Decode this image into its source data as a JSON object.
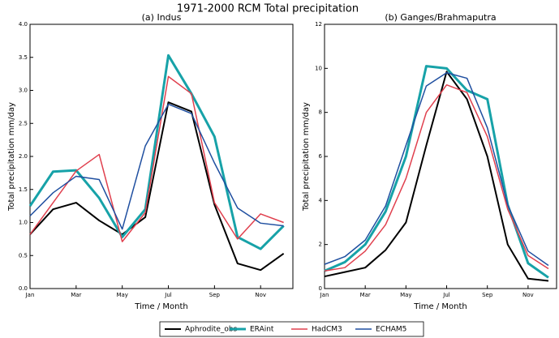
{
  "title": "1971-2000 RCM Total precipitation",
  "chart_data": [
    {
      "type": "line",
      "title": "(a) Indus",
      "x_label": "Time / Month",
      "y_label": "Total precipitation  mm/day",
      "categories": [
        "Jan",
        null,
        "Mar",
        null,
        "May",
        null,
        "Jul",
        null,
        "Sep",
        null,
        "Nov",
        null
      ],
      "ylim": [
        0,
        4
      ],
      "yticks": [
        {
          "value": 0,
          "label": "0.0"
        },
        {
          "value": 0.5,
          "label": "0.5"
        },
        {
          "value": 1,
          "label": "1.0"
        },
        {
          "value": 1.5,
          "label": "1.5"
        },
        {
          "value": 2,
          "label": "2.0"
        },
        {
          "value": 2.5,
          "label": "2.5"
        },
        {
          "value": 3,
          "label": "3.0"
        },
        {
          "value": 3.5,
          "label": "3.5"
        },
        {
          "value": 4,
          "label": "4.0"
        }
      ],
      "series": [
        {
          "name": "Aphrodite_obs",
          "color": "#000000",
          "values": [
            0.82,
            1.2,
            1.3,
            1.03,
            0.82,
            1.08,
            2.82,
            2.68,
            1.27,
            0.38,
            0.28,
            0.53
          ]
        },
        {
          "name": "ERAint",
          "color": "#17a2a8",
          "values": [
            1.25,
            1.77,
            1.79,
            1.37,
            0.78,
            1.2,
            3.53,
            2.95,
            2.3,
            0.78,
            0.6,
            0.95
          ]
        },
        {
          "name": "HadCM3",
          "color": "#e0404e",
          "values": [
            0.82,
            1.3,
            1.78,
            2.03,
            0.71,
            1.15,
            3.21,
            2.95,
            1.3,
            0.75,
            1.13,
            1.0
          ]
        },
        {
          "name": "ECHAM5",
          "color": "#1f4fa0",
          "values": [
            1.1,
            1.45,
            1.7,
            1.65,
            0.9,
            2.16,
            2.79,
            2.65,
            1.9,
            1.22,
            0.99,
            0.95
          ]
        }
      ]
    },
    {
      "type": "line",
      "title": "(b) Ganges/Brahmaputra",
      "x_label": "Time / Month",
      "y_label": "Total precipitation  mm/day",
      "categories": [
        "Jan",
        null,
        "Mar",
        null,
        "May",
        null,
        "Jul",
        null,
        "Sep",
        null,
        "Nov",
        null
      ],
      "ylim": [
        0,
        12
      ],
      "yticks": [
        0,
        2,
        4,
        6,
        8,
        10,
        12
      ],
      "series": [
        {
          "name": "Aphrodite_obs",
          "color": "#000000",
          "values": [
            0.55,
            0.75,
            0.95,
            1.75,
            3.0,
            6.5,
            9.85,
            8.6,
            6.0,
            2.0,
            0.45,
            0.35
          ]
        },
        {
          "name": "ERAint",
          "color": "#17a2a8",
          "values": [
            0.8,
            1.2,
            2.0,
            3.5,
            6.0,
            10.1,
            10.0,
            9.0,
            8.6,
            3.8,
            1.15,
            0.5
          ]
        },
        {
          "name": "HadCM3",
          "color": "#e0404e",
          "values": [
            0.8,
            0.95,
            1.7,
            2.9,
            5.0,
            8.0,
            9.25,
            8.9,
            6.9,
            3.6,
            1.5,
            0.9
          ]
        },
        {
          "name": "ECHAM5",
          "color": "#1f4fa0",
          "values": [
            1.1,
            1.45,
            2.2,
            3.75,
            6.5,
            9.2,
            9.8,
            9.55,
            7.3,
            3.8,
            1.7,
            1.05
          ]
        }
      ]
    }
  ]
}
